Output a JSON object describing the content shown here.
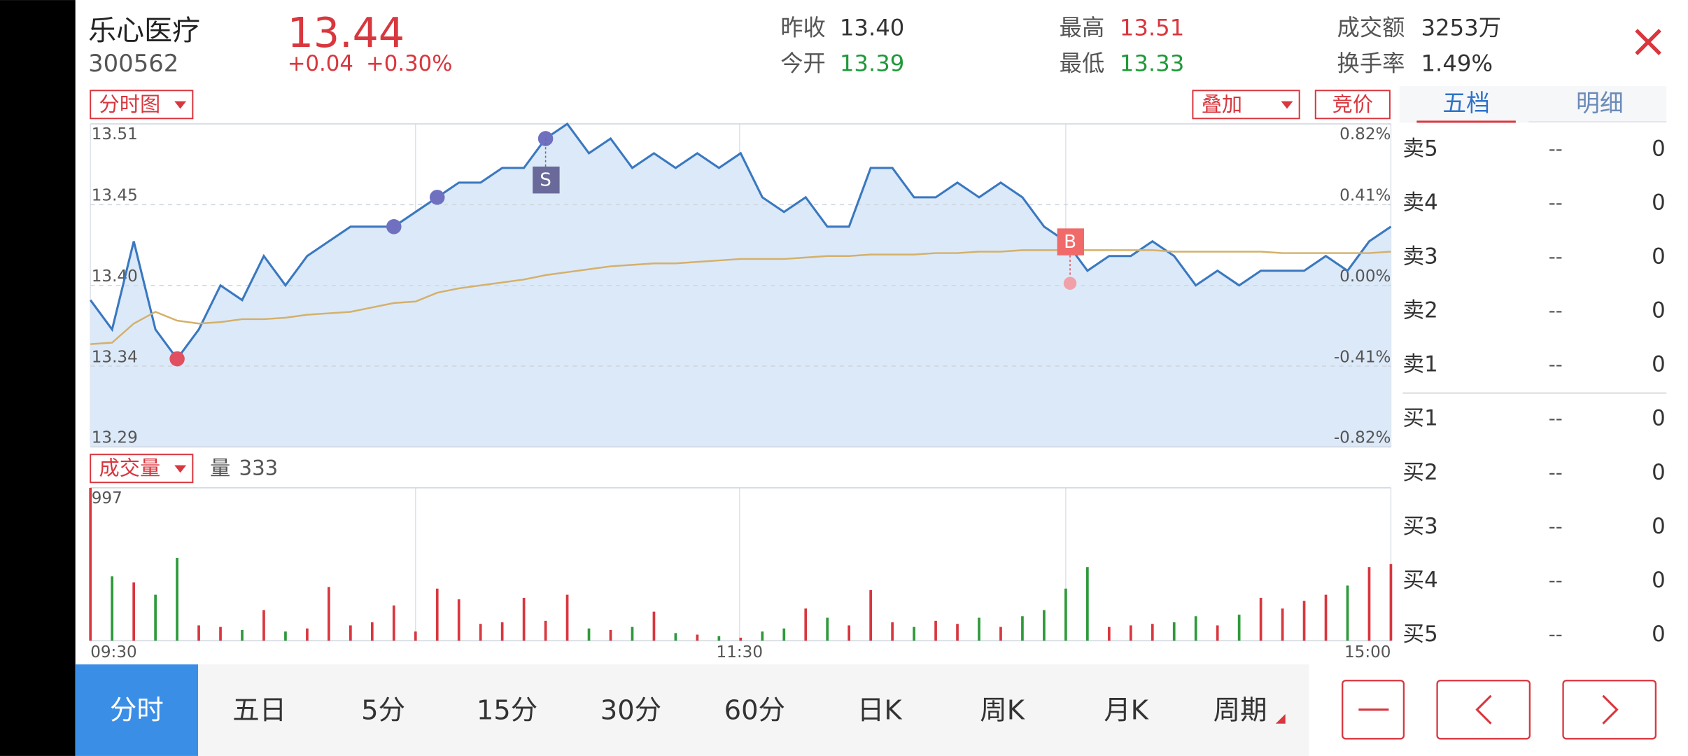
{
  "header": {
    "name": "乐心医疗",
    "code": "300562",
    "price": "13.44",
    "change": "+0.04",
    "change_pct": "+0.30%",
    "stats": [
      {
        "label": "昨收",
        "value": "13.40",
        "color": "#333333"
      },
      {
        "label": "今开",
        "value": "13.39",
        "color": "#1f9a3a"
      },
      {
        "label": "最高",
        "value": "13.51",
        "color": "#d9363e"
      },
      {
        "label": "最低",
        "value": "13.33",
        "color": "#1f9a3a"
      },
      {
        "label": "成交额",
        "value": "3253万",
        "color": "#333333"
      },
      {
        "label": "换手率",
        "value": "1.49%",
        "color": "#333333"
      }
    ]
  },
  "price_chart": {
    "type": "line",
    "mode_button": "分时图",
    "overlay_button": "叠加",
    "auction_button": "竞价",
    "ylim": [
      13.29,
      13.51
    ],
    "yticks": [
      13.51,
      {
        "value": 13.455,
        "label": "13.45"
      },
      {
        "value": 13.4,
        "label": "13.40"
      },
      {
        "value": 13.345,
        "label": "13.34"
      },
      13.29
    ],
    "y2lim": [
      -0.82,
      0.82
    ],
    "y2ticks": [
      {
        "value": 0.82,
        "label": "0.82%"
      },
      {
        "value": 0.41,
        "label": "0.41%"
      },
      {
        "value": 0,
        "label": "0.00%"
      },
      {
        "value": -0.41,
        "label": "-0.41%"
      },
      {
        "value": -0.82,
        "label": "-0.82%"
      }
    ],
    "xticks": [
      "09:30",
      "11:30",
      "15:00"
    ],
    "series": [
      {
        "color": "#3a78c0",
        "values": [
          13.39,
          13.37,
          13.43,
          13.37,
          13.35,
          13.37,
          13.4,
          13.39,
          13.42,
          13.4,
          13.42,
          13.43,
          13.44,
          13.44,
          13.44,
          13.45,
          13.46,
          13.47,
          13.47,
          13.48,
          13.48,
          13.5,
          13.51,
          13.49,
          13.5,
          13.48,
          13.49,
          13.48,
          13.49,
          13.48,
          13.49,
          13.46,
          13.45,
          13.46,
          13.44,
          13.44,
          13.48,
          13.48,
          13.46,
          13.46,
          13.47,
          13.46,
          13.47,
          13.46,
          13.44,
          13.43,
          13.41,
          13.42,
          13.42,
          13.43,
          13.42,
          13.4,
          13.41,
          13.4,
          13.41,
          13.41,
          13.41,
          13.42,
          13.41,
          13.43,
          13.44
        ]
      },
      {
        "color": "#d4b06a",
        "values": [
          13.36,
          13.361,
          13.374,
          13.382,
          13.376,
          13.374,
          13.375,
          13.377,
          13.377,
          13.378,
          13.38,
          13.381,
          13.382,
          13.385,
          13.388,
          13.389,
          13.395,
          13.398,
          13.4,
          13.402,
          13.404,
          13.407,
          13.409,
          13.411,
          13.413,
          13.414,
          13.415,
          13.415,
          13.416,
          13.417,
          13.418,
          13.418,
          13.418,
          13.419,
          13.42,
          13.42,
          13.421,
          13.421,
          13.421,
          13.422,
          13.422,
          13.423,
          13.423,
          13.424,
          13.424,
          13.424,
          13.424,
          13.424,
          13.424,
          13.424,
          13.423,
          13.423,
          13.423,
          13.423,
          13.423,
          13.422,
          13.422,
          13.422,
          13.422,
          13.422,
          13.423
        ]
      }
    ],
    "trade_markers": [
      {
        "label": "S"
      },
      {
        "label": "B"
      }
    ]
  },
  "volume_chart": {
    "type": "bar",
    "button": "成交量",
    "label": "量",
    "value": "333",
    "ylim": [
      0,
      997
    ],
    "yticks": [
      997
    ],
    "up_color": "#d9363e",
    "down_color": "#2e9a3a",
    "values": [
      997,
      420,
      380,
      300,
      540,
      100,
      90,
      70,
      200,
      60,
      80,
      350,
      100,
      120,
      230,
      60,
      340,
      270,
      110,
      120,
      280,
      130,
      300,
      80,
      70,
      90,
      190,
      50,
      40,
      30,
      20,
      60,
      80,
      210,
      150,
      100,
      330,
      120,
      90,
      130,
      110,
      150,
      90,
      160,
      200,
      340,
      480,
      90,
      100,
      110,
      120,
      160,
      100,
      170,
      280,
      210,
      260,
      300,
      360,
      480,
      500
    ]
  },
  "order_book": {
    "tabs": [
      "五档",
      "明细"
    ],
    "rows": [
      {
        "label": "卖5",
        "price": "--",
        "volume": "0"
      },
      {
        "label": "卖4",
        "price": "--",
        "volume": "0"
      },
      {
        "label": "卖3",
        "price": "--",
        "volume": "0"
      },
      {
        "label": "卖2",
        "price": "--",
        "volume": "0"
      },
      {
        "label": "卖1",
        "price": "--",
        "volume": "0"
      },
      {
        "label": "买1",
        "price": "--",
        "volume": "0"
      },
      {
        "label": "买2",
        "price": "--",
        "volume": "0"
      },
      {
        "label": "买3",
        "price": "--",
        "volume": "0"
      },
      {
        "label": "买4",
        "price": "--",
        "volume": "0"
      },
      {
        "label": "买5",
        "price": "--",
        "volume": "0"
      }
    ]
  },
  "bottom_tabs": [
    "分时",
    "五日",
    "5分",
    "15分",
    "30分",
    "60分",
    "日K",
    "周K",
    "月K",
    "周期"
  ]
}
